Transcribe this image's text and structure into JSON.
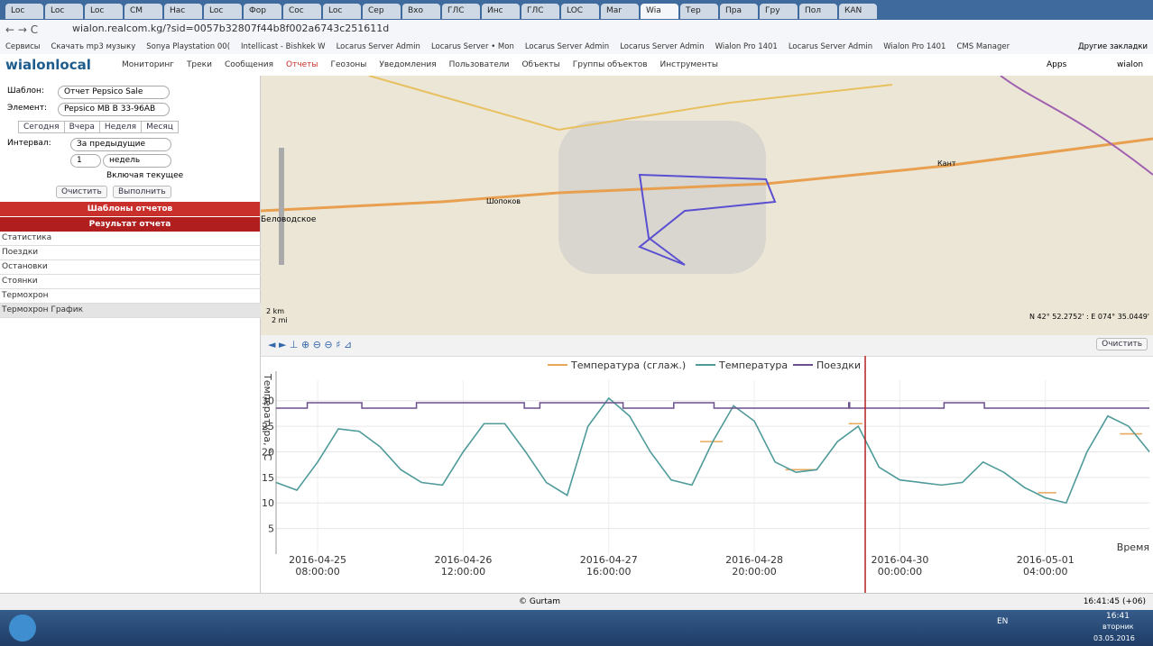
{
  "browser": {
    "tabs": [
      "Loc",
      "Loc",
      "Loc",
      "CM",
      "Нас",
      "Loc",
      "Фор",
      "Coc",
      "Loc",
      "Сер",
      "Вхо",
      "ГЛС",
      "Инс",
      "ГЛС",
      "LOC",
      "Mar",
      "Wia",
      "Тер",
      "Пра",
      "Гру",
      "Пол",
      "КАN"
    ],
    "url": "wialon.realcom.kg/?sid=0057b32807f44b8f002a6743c251611d",
    "bookmarks": [
      "Сервисы",
      "Скачать mp3 музыку",
      "Sonya Playstation 00(",
      "Intellicast - Bishkek W",
      "Locarus Server Admin",
      "Locarus Server • Mon",
      "Locarus Server Admin",
      "Locarus Server Admin",
      "Wialon Pro 1401",
      "Locarus Server Admin",
      "Wialon Pro 1401",
      "CMS Manager"
    ],
    "other_bookmarks": "Другие закладки"
  },
  "app": {
    "logo": "wialonlocal",
    "menu": [
      "Мониторинг",
      "Треки",
      "Сообщения",
      "Отчеты",
      "Геозоны",
      "Уведомления",
      "Пользователи",
      "Объекты",
      "Группы объектов",
      "Инструменты"
    ],
    "apps": "Apps",
    "user": "wialon"
  },
  "report_form": {
    "template_label": "Шаблон:",
    "template": "Отчет Pepsico Sale",
    "element_label": "Элемент:",
    "element": "Pepsico MB B 33-96AB",
    "quick": [
      "Сегодня",
      "Вчера",
      "Неделя",
      "Месяц"
    ],
    "interval_label": "Интервал:",
    "interval": "За предыдущие",
    "count": "1",
    "unit": "недель",
    "include_current": "Включая текущее",
    "clear": "Очистить",
    "run": "Выполнить"
  },
  "sections": {
    "templates": "Шаблоны отчетов",
    "result": "Результат отчета",
    "items": [
      "Статистика",
      "Поездки",
      "Остановки",
      "Стоянки",
      "Термохрон",
      "Термохрон График"
    ]
  },
  "map": {
    "labels": [
      "Беловодское",
      "Шопоков",
      "Кант"
    ],
    "scale_km": "2 km",
    "scale_mi": "2 mi",
    "coords": "N 42° 52.2752' : E 074° 35.0449'"
  },
  "chart_toolbar": {
    "clear": "Очистить"
  },
  "chart": {
    "type": "line",
    "y_label": "Температура, °C",
    "x_label": "Время",
    "xlim": [
      "2016-04-25 00:00",
      "2016-05-02 00:00"
    ],
    "xticks": [
      {
        "value": "2016-04-25 08:00",
        "date": "2016-04-25",
        "time": "08:00:00"
      },
      {
        "value": "2016-04-26 12:00",
        "date": "2016-04-26",
        "time": "12:00:00"
      },
      {
        "value": "2016-04-27 16:00",
        "date": "2016-04-27",
        "time": "16:00:00"
      },
      {
        "value": "2016-04-28 20:00",
        "date": "2016-04-28",
        "time": "20:00:00"
      },
      {
        "value": "2016-04-30 00:00",
        "date": "2016-04-30",
        "time": "00:00:00"
      },
      {
        "value": "2016-05-01 04:00",
        "date": "2016-05-01",
        "time": "04:00:00"
      }
    ],
    "ylim": [
      0,
      34
    ],
    "yticks": [
      5,
      10,
      15,
      20,
      25,
      30
    ],
    "grid": true,
    "cursor": "2016-04-29 17:20",
    "series": [
      {
        "name": "Температура (сглаж.)",
        "color": "#e8a85c",
        "x": [
          "2016-04-28 09:35",
          "2016-04-28 13:55",
          "2016-04-28 14:00",
          "2016-04-29 02:00",
          "2016-04-29 08:05",
          "2016-04-29 08:10",
          "2016-04-29 14:10",
          "2016-04-29 16:50",
          "2016-04-29 17:00",
          "2016-05-01 02:35",
          "2016-05-01 06:05",
          "2016-05-01 06:10",
          "2016-05-01 18:20",
          "2016-05-01 22:35"
        ],
        "values": [
          22,
          22,
          null,
          16.5,
          16.5,
          null,
          25.5,
          25.5,
          null,
          12,
          12,
          null,
          23.5,
          23.5
        ]
      },
      {
        "name": "Температура",
        "color": "#4f9a9a",
        "x": [
          "2016-04-25 00:00",
          "2016-04-25 04:00",
          "2016-04-25 08:00",
          "2016-04-25 12:00",
          "2016-04-25 16:00",
          "2016-04-25 20:00",
          "2016-04-26 00:00",
          "2016-04-26 04:00",
          "2016-04-26 08:00",
          "2016-04-26 12:00",
          "2016-04-26 16:00",
          "2016-04-26 20:00",
          "2016-04-27 00:00",
          "2016-04-27 04:00",
          "2016-04-27 08:00",
          "2016-04-27 12:00",
          "2016-04-27 16:00",
          "2016-04-27 20:00",
          "2016-04-28 00:00",
          "2016-04-28 04:00",
          "2016-04-28 08:00",
          "2016-04-28 12:00",
          "2016-04-28 16:00",
          "2016-04-28 20:00",
          "2016-04-29 00:00",
          "2016-04-29 04:00",
          "2016-04-29 08:00",
          "2016-04-29 12:00",
          "2016-04-29 16:00",
          "2016-04-29 20:00",
          "2016-04-30 00:00",
          "2016-04-30 04:00",
          "2016-04-30 08:00",
          "2016-04-30 12:00",
          "2016-04-30 16:00",
          "2016-04-30 20:00",
          "2016-05-01 00:00",
          "2016-05-01 04:00",
          "2016-05-01 08:00",
          "2016-05-01 12:00",
          "2016-05-01 16:00",
          "2016-05-01 20:00",
          "2016-05-02 00:00"
        ],
        "values": [
          14,
          12.5,
          18,
          24.5,
          24,
          21,
          16.5,
          14,
          13.5,
          20,
          25.5,
          25.5,
          20,
          14,
          11.5,
          25,
          30.5,
          27,
          20,
          14.5,
          13.5,
          22,
          29,
          26,
          18,
          16,
          16.5,
          22,
          25,
          17,
          14.5,
          14,
          13.5,
          14,
          18,
          16,
          13,
          11,
          10,
          20,
          27,
          25,
          20
        ]
      },
      {
        "name": "Поездки",
        "color": "#6a4f8c",
        "intervals": [
          [
            "2016-04-25 06:00",
            "2016-04-25 16:30"
          ],
          [
            "2016-04-26 03:00",
            "2016-04-26 23:45"
          ],
          [
            "2016-04-27 02:45",
            "2016-04-27 18:45"
          ],
          [
            "2016-04-28 04:30",
            "2016-04-28 12:15"
          ],
          [
            "2016-04-29 14:10",
            "2016-04-29 14:20"
          ],
          [
            "2016-04-30 08:30",
            "2016-04-30 16:15"
          ]
        ]
      }
    ]
  },
  "status": {
    "copyright": "© Gurtam",
    "time": "16:41:45 (+06)"
  },
  "taskbar": {
    "lang": "EN",
    "clock": "16:41",
    "weekday": "вторник",
    "date": "03.05.2016"
  }
}
